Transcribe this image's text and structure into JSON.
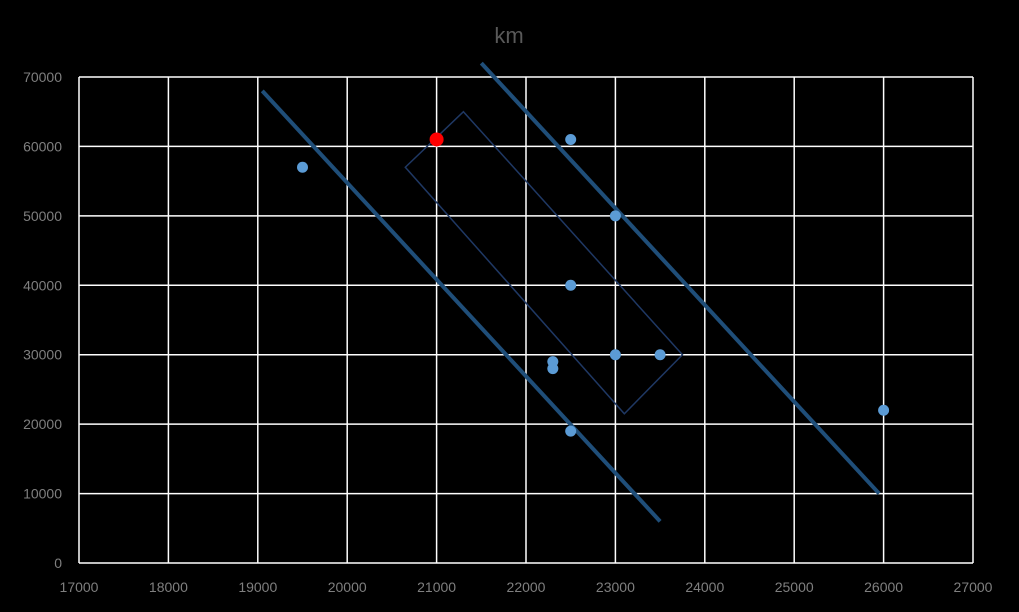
{
  "chart_data": {
    "type": "scatter",
    "title": "km",
    "xlabel": "",
    "ylabel": "",
    "xlim": [
      17000,
      27000
    ],
    "ylim": [
      0,
      70000
    ],
    "x_ticks": [
      17000,
      18000,
      19000,
      20000,
      21000,
      22000,
      23000,
      24000,
      25000,
      26000,
      27000
    ],
    "y_ticks": [
      0,
      10000,
      20000,
      30000,
      40000,
      50000,
      60000,
      70000
    ],
    "grid": true,
    "legend": "none",
    "colors": {
      "background": "#000000",
      "grid": "#ffffff",
      "tick_text": "#7f7f7f",
      "title_text": "#595959",
      "point": "#5b9bd5",
      "highlight_point": "#ff0000",
      "trend_line": "#1f4e79",
      "box_outline": "#1f3864"
    },
    "points": [
      {
        "x": 19500,
        "y": 57000
      },
      {
        "x": 22500,
        "y": 61000
      },
      {
        "x": 23000,
        "y": 50000
      },
      {
        "x": 22500,
        "y": 40000
      },
      {
        "x": 23000,
        "y": 30000
      },
      {
        "x": 23500,
        "y": 30000
      },
      {
        "x": 22300,
        "y": 29000
      },
      {
        "x": 22300,
        "y": 28000
      },
      {
        "x": 22500,
        "y": 19000
      },
      {
        "x": 26000,
        "y": 22000
      }
    ],
    "highlight_points": [
      {
        "x": 21000,
        "y": 61000
      }
    ],
    "lines": [
      {
        "x1": 19050,
        "y1": 68000,
        "x2": 23500,
        "y2": 6000
      },
      {
        "x1": 21500,
        "y1": 72000,
        "x2": 25950,
        "y2": 10000
      }
    ],
    "box": [
      {
        "x": 20650,
        "y": 57000
      },
      {
        "x": 21300,
        "y": 65000
      },
      {
        "x": 23750,
        "y": 30000
      },
      {
        "x": 23100,
        "y": 21500
      }
    ]
  }
}
